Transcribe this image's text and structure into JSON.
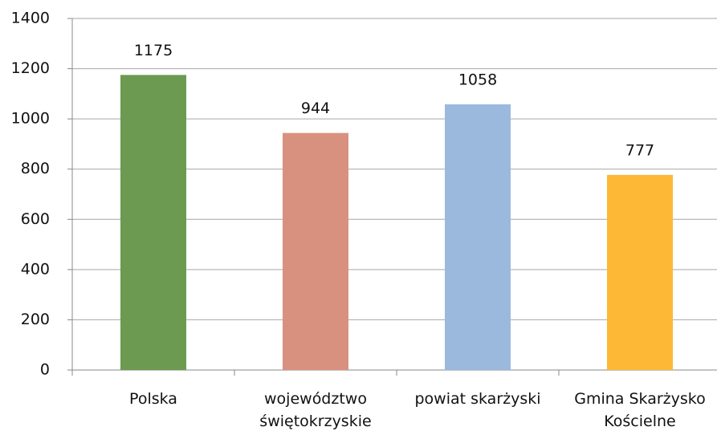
{
  "chart_data": {
    "type": "bar",
    "categories": [
      "Polska",
      "województwo świętokrzyskie",
      "powiat skarżyski",
      "Gmina Skarżysko Kościelne"
    ],
    "values": [
      1175,
      944,
      1058,
      777
    ],
    "colors": [
      "#6b9a50",
      "#d9917f",
      "#9bb9dd",
      "#fdb835"
    ],
    "ylim": [
      0,
      1400
    ],
    "yticks": [
      0,
      200,
      400,
      600,
      800,
      1000,
      1200,
      1400
    ],
    "grid": true
  }
}
